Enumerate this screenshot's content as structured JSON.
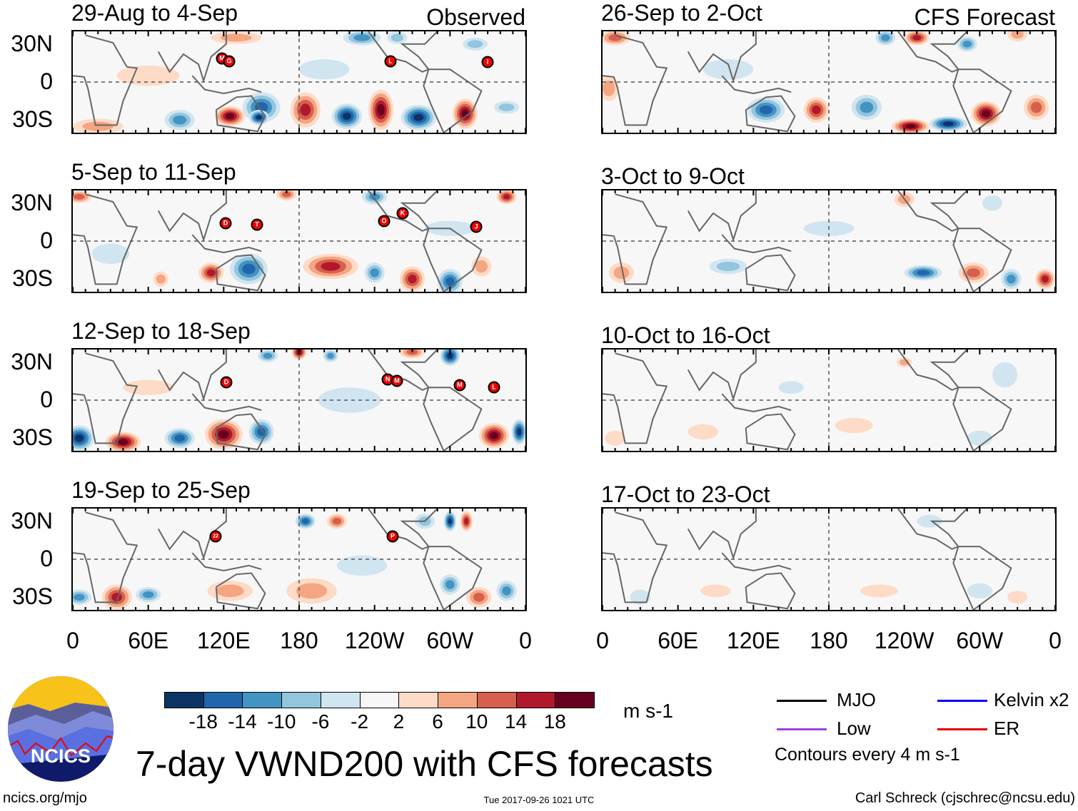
{
  "chart_data": {
    "type": "heatmap",
    "title": "7-day VWND200 with CFS forecasts",
    "units": "m s-1",
    "contour_note": "Contours every 4 m s-1",
    "column_headers": [
      "Observed",
      "CFS Forecast"
    ],
    "x_ticks": [
      "0",
      "60E",
      "120E",
      "180",
      "120W",
      "60W",
      "0"
    ],
    "y_ticks": [
      "30N",
      "0",
      "30S"
    ],
    "colorbar": {
      "labels": [
        "-18",
        "-14",
        "-10",
        "-6",
        "-2",
        "2",
        "6",
        "10",
        "14",
        "18"
      ],
      "colors": [
        "#0b3464",
        "#2166ac",
        "#4393c3",
        "#92c5de",
        "#d1e5f0",
        "#f7f7f7",
        "#fddbc7",
        "#f4a582",
        "#d6604d",
        "#b2182b",
        "#67001f"
      ]
    },
    "panels": [
      {
        "title": "29-Aug to 4-Sep",
        "kind": "observed",
        "storms": [
          "M",
          "G",
          "L",
          "I"
        ]
      },
      {
        "title": "5-Sep to 11-Sep",
        "kind": "observed",
        "storms": [
          "D",
          "T",
          "O",
          "K",
          "J"
        ]
      },
      {
        "title": "12-Sep to 18-Sep",
        "kind": "observed",
        "storms": [
          "D",
          "N",
          "M",
          "M",
          "L"
        ]
      },
      {
        "title": "19-Sep to 25-Sep",
        "kind": "observed",
        "storms": [
          "22",
          "P"
        ]
      },
      {
        "title": "26-Sep to 2-Oct",
        "kind": "forecast",
        "storms": []
      },
      {
        "title": "3-Oct to 9-Oct",
        "kind": "forecast",
        "storms": []
      },
      {
        "title": "10-Oct to 16-Oct",
        "kind": "forecast",
        "storms": []
      },
      {
        "title": "17-Oct to 23-Oct",
        "kind": "forecast",
        "storms": []
      }
    ]
  },
  "legend": {
    "mjo": "MJO",
    "kelvin": "Kelvin x2",
    "low": "Low",
    "er": "ER",
    "colors": {
      "mjo": "#000000",
      "kelvin": "#0000ff",
      "low": "#a040e0",
      "er": "#e00000"
    }
  },
  "logo": {
    "text": "NCICS"
  },
  "footer": {
    "url": "ncics.org/mjo",
    "timestamp": "Tue 2017-09-26 1021 UTC",
    "author": "Carl Schreck (cjschrec@ncsu.edu)"
  }
}
